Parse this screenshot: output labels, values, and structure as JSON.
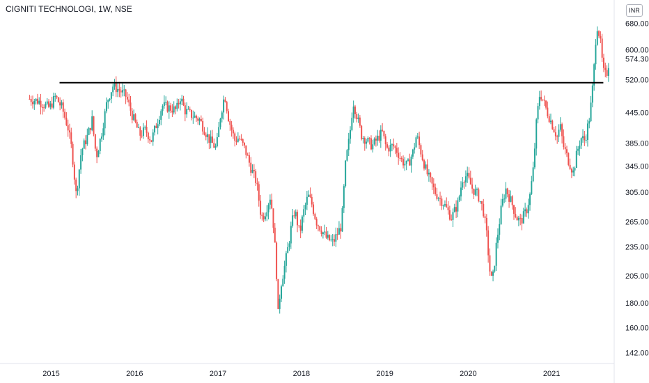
{
  "chart_data": {
    "type": "candlestick",
    "title": "CIGNITI TECHNOLOGI, 1W, NSE",
    "currency": "INR",
    "y_scale": "log",
    "ylim": [
      135,
      760
    ],
    "y_ticks": [
      "142.00",
      "160.00",
      "180.00",
      "205.00",
      "235.00",
      "265.00",
      "305.00",
      "345.00",
      "385.00",
      "445.00",
      "520.00",
      "600.00",
      "680.00"
    ],
    "last_price": "574.30",
    "x_ticks": [
      "2015",
      "2016",
      "2017",
      "2018",
      "2019",
      "2020",
      "2021"
    ],
    "x_range": [
      2014.72,
      2021.7
    ],
    "horizontal_line": {
      "value": 513,
      "from": 2015.1,
      "to": 2021.62,
      "color": "#000000"
    },
    "up_color": "#26a69a",
    "down_color": "#ef5350",
    "grid": false,
    "price_anchors": [
      [
        2014.74,
        475
      ],
      [
        2014.85,
        470
      ],
      [
        2014.98,
        455
      ],
      [
        2015.05,
        480
      ],
      [
        2015.13,
        455
      ],
      [
        2015.2,
        415
      ],
      [
        2015.25,
        370
      ],
      [
        2015.3,
        300
      ],
      [
        2015.36,
        370
      ],
      [
        2015.44,
        400
      ],
      [
        2015.49,
        430
      ],
      [
        2015.54,
        360
      ],
      [
        2015.6,
        400
      ],
      [
        2015.67,
        470
      ],
      [
        2015.74,
        505
      ],
      [
        2015.82,
        495
      ],
      [
        2015.9,
        480
      ],
      [
        2015.97,
        440
      ],
      [
        2016.06,
        400
      ],
      [
        2016.13,
        410
      ],
      [
        2016.2,
        390
      ],
      [
        2016.28,
        430
      ],
      [
        2016.33,
        460
      ],
      [
        2016.42,
        455
      ],
      [
        2016.5,
        450
      ],
      [
        2016.55,
        480
      ],
      [
        2016.6,
        450
      ],
      [
        2016.68,
        440
      ],
      [
        2016.78,
        430
      ],
      [
        2016.9,
        390
      ],
      [
        2016.98,
        375
      ],
      [
        2017.03,
        440
      ],
      [
        2017.08,
        485
      ],
      [
        2017.13,
        430
      ],
      [
        2017.2,
        390
      ],
      [
        2017.25,
        395
      ],
      [
        2017.32,
        375
      ],
      [
        2017.4,
        340
      ],
      [
        2017.46,
        320
      ],
      [
        2017.52,
        270
      ],
      [
        2017.56,
        275
      ],
      [
        2017.63,
        300
      ],
      [
        2017.67,
        255
      ],
      [
        2017.7,
        210
      ],
      [
        2017.72,
        170
      ],
      [
        2017.75,
        195
      ],
      [
        2017.8,
        215
      ],
      [
        2017.85,
        240
      ],
      [
        2017.88,
        260
      ],
      [
        2017.92,
        280
      ],
      [
        2017.98,
        250
      ],
      [
        2018.02,
        275
      ],
      [
        2018.08,
        300
      ],
      [
        2018.12,
        290
      ],
      [
        2018.18,
        265
      ],
      [
        2018.24,
        255
      ],
      [
        2018.3,
        245
      ],
      [
        2018.38,
        240
      ],
      [
        2018.43,
        250
      ],
      [
        2018.48,
        260
      ],
      [
        2018.53,
        350
      ],
      [
        2018.58,
        400
      ],
      [
        2018.62,
        470
      ],
      [
        2018.67,
        435
      ],
      [
        2018.72,
        400
      ],
      [
        2018.78,
        390
      ],
      [
        2018.85,
        380
      ],
      [
        2018.92,
        395
      ],
      [
        2018.97,
        405
      ],
      [
        2019.02,
        375
      ],
      [
        2019.1,
        380
      ],
      [
        2019.15,
        370
      ],
      [
        2019.2,
        355
      ],
      [
        2019.27,
        345
      ],
      [
        2019.34,
        370
      ],
      [
        2019.38,
        400
      ],
      [
        2019.45,
        360
      ],
      [
        2019.5,
        335
      ],
      [
        2019.55,
        320
      ],
      [
        2019.6,
        305
      ],
      [
        2019.7,
        290
      ],
      [
        2019.8,
        270
      ],
      [
        2019.88,
        290
      ],
      [
        2019.93,
        325
      ],
      [
        2019.98,
        330
      ],
      [
        2020.05,
        310
      ],
      [
        2020.12,
        300
      ],
      [
        2020.18,
        280
      ],
      [
        2020.22,
        250
      ],
      [
        2020.27,
        200
      ],
      [
        2020.3,
        205
      ],
      [
        2020.34,
        240
      ],
      [
        2020.4,
        285
      ],
      [
        2020.45,
        310
      ],
      [
        2020.52,
        290
      ],
      [
        2020.58,
        270
      ],
      [
        2020.63,
        265
      ],
      [
        2020.7,
        280
      ],
      [
        2020.74,
        300
      ],
      [
        2020.78,
        340
      ],
      [
        2020.82,
        430
      ],
      [
        2020.86,
        490
      ],
      [
        2020.9,
        470
      ],
      [
        2020.95,
        445
      ],
      [
        2021.02,
        415
      ],
      [
        2021.07,
        395
      ],
      [
        2021.1,
        420
      ],
      [
        2021.14,
        380
      ],
      [
        2021.2,
        355
      ],
      [
        2021.26,
        335
      ],
      [
        2021.3,
        365
      ],
      [
        2021.35,
        395
      ],
      [
        2021.4,
        390
      ],
      [
        2021.46,
        440
      ],
      [
        2021.5,
        520
      ],
      [
        2021.54,
        680
      ],
      [
        2021.58,
        635
      ],
      [
        2021.6,
        580
      ],
      [
        2021.63,
        530
      ],
      [
        2021.67,
        540
      ],
      [
        2021.69,
        574.3
      ]
    ]
  }
}
